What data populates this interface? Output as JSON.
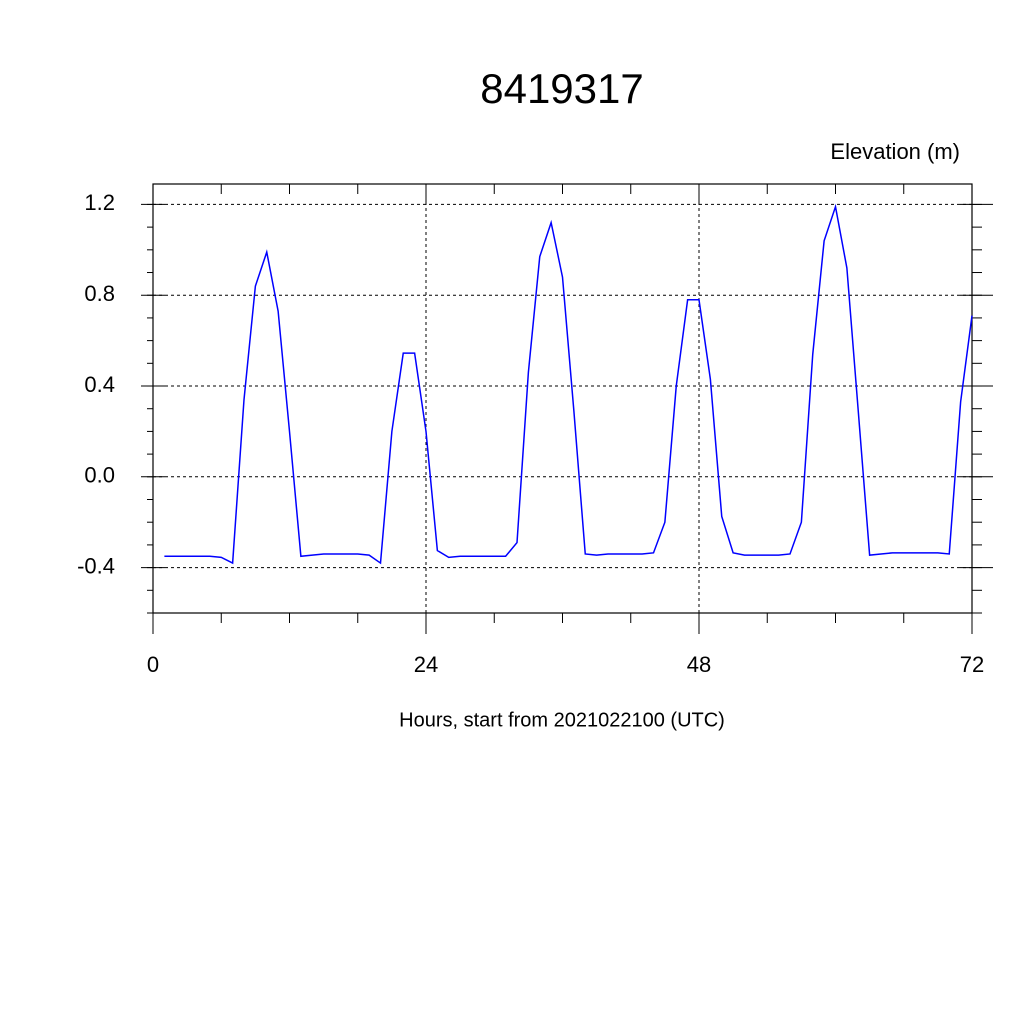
{
  "chart_data": {
    "type": "line",
    "title": "8419317",
    "ylabel": "Elevation (m)",
    "xlabel": "Hours, start from 2021022100 (UTC)",
    "x": [
      1,
      2,
      3,
      4,
      5,
      6,
      7,
      8,
      9,
      10,
      11,
      12,
      13,
      14,
      15,
      16,
      17,
      18,
      19,
      20,
      21,
      22,
      23,
      24,
      25,
      26,
      27,
      28,
      29,
      30,
      31,
      32,
      33,
      34,
      35,
      36,
      37,
      38,
      39,
      40,
      41,
      42,
      43,
      44,
      45,
      46,
      47,
      48,
      49,
      50,
      51,
      52,
      53,
      54,
      55,
      56,
      57,
      58,
      59,
      60,
      61,
      62,
      63,
      64,
      65,
      66,
      67,
      68,
      69,
      70,
      71,
      72
    ],
    "series": [
      {
        "color": "#0000ff",
        "values": [
          -0.35,
          -0.35,
          -0.35,
          -0.35,
          -0.35,
          -0.355,
          -0.38,
          0.34,
          0.84,
          0.99,
          0.73,
          0.2,
          -0.35,
          -0.345,
          -0.34,
          -0.34,
          -0.34,
          -0.34,
          -0.345,
          -0.38,
          0.2,
          0.545,
          0.545,
          0.2,
          -0.325,
          -0.355,
          -0.35,
          -0.35,
          -0.35,
          -0.35,
          -0.35,
          -0.29,
          0.46,
          0.97,
          1.12,
          0.88,
          0.29,
          -0.34,
          -0.345,
          -0.34,
          -0.34,
          -0.34,
          -0.34,
          -0.335,
          -0.2,
          0.4,
          0.78,
          0.78,
          0.43,
          -0.175,
          -0.335,
          -0.345,
          -0.345,
          -0.345,
          -0.345,
          -0.34,
          -0.2,
          0.54,
          1.04,
          1.19,
          0.92,
          0.29,
          -0.345,
          -0.34,
          -0.335,
          -0.335,
          -0.335,
          -0.335,
          -0.335,
          -0.34,
          0.33,
          0.71
        ]
      }
    ],
    "xlim": [
      0,
      72
    ],
    "xticks": [
      0,
      24,
      48,
      72
    ],
    "ylim": [
      -0.6,
      1.29
    ],
    "yticks": [
      1.2,
      0.8,
      0.4,
      {
        "value": 0,
        "label": "0.0"
      },
      -0.4
    ],
    "grid": true
  }
}
